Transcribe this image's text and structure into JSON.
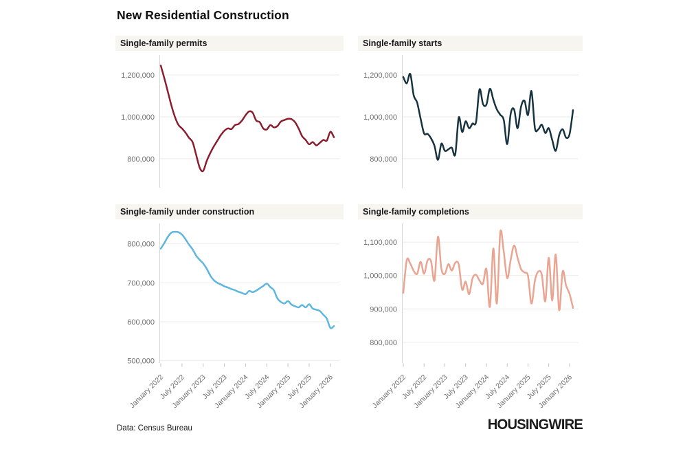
{
  "page": {
    "title": "New Residential Construction",
    "source_note": "Data: Census Bureau",
    "brand": "HOUSINGWIRE"
  },
  "colors": {
    "permits_line": "#8b1e2e",
    "starts_line": "#17333f",
    "under_construction_line": "#5eb6de",
    "completions_line": "#e9a592",
    "panel_title_bg": "#f7f5f0",
    "gridline": "#edebe6",
    "axis_line": "#d8d6d1",
    "tick_mark": "#c4c2bd",
    "axis_label": "#6e6e6e"
  },
  "axis": {
    "x_tick_labels": [
      "January 2022",
      "July 2022",
      "January 2023",
      "July 2023",
      "January 2024",
      "July 2024",
      "January 2025",
      "July 2025",
      "January 2026"
    ],
    "x_tick_months": [
      0,
      6,
      12,
      18,
      24,
      30,
      36,
      42,
      48
    ],
    "x_months": [
      "2022-01",
      "2022-02",
      "2022-03",
      "2022-04",
      "2022-05",
      "2022-06",
      "2022-07",
      "2022-08",
      "2022-09",
      "2022-10",
      "2022-11",
      "2022-12",
      "2023-01",
      "2023-02",
      "2023-03",
      "2023-04",
      "2023-05",
      "2023-06",
      "2023-07",
      "2023-08",
      "2023-09",
      "2023-10",
      "2023-11",
      "2023-12",
      "2024-01",
      "2024-02",
      "2024-03",
      "2024-04",
      "2024-05",
      "2024-06",
      "2024-07",
      "2024-08",
      "2024-09",
      "2024-10",
      "2024-11",
      "2024-12",
      "2025-01",
      "2025-02",
      "2025-03",
      "2025-04",
      "2025-05",
      "2025-06",
      "2025-07",
      "2025-08",
      "2025-09",
      "2025-10",
      "2025-11",
      "2025-12",
      "2026-01",
      "2026-02"
    ]
  },
  "chart_data": [
    {
      "type": "line",
      "title": "Single-family permits",
      "color": "#8b1e2e",
      "yticks": [
        800000,
        1000000,
        1200000
      ],
      "ylim": [
        662000,
        1315000
      ],
      "show_x_labels": false,
      "values": [
        1245000,
        1185000,
        1120000,
        1055000,
        1000000,
        962000,
        945000,
        925000,
        900000,
        880000,
        820000,
        758000,
        742000,
        790000,
        827000,
        859000,
        886000,
        913000,
        934000,
        945000,
        942000,
        961000,
        966000,
        983000,
        1008000,
        1026000,
        1020000,
        983000,
        975000,
        945000,
        940000,
        961000,
        950000,
        956000,
        978000,
        985000,
        991000,
        989000,
        975000,
        945000,
        908000,
        890000,
        869000,
        880000,
        864000,
        876000,
        890000,
        887000,
        929000,
        903000
      ]
    },
    {
      "type": "line",
      "title": "Single-family starts",
      "color": "#17333f",
      "yticks": [
        800000,
        1000000,
        1200000
      ],
      "ylim": [
        662000,
        1315000
      ],
      "show_x_labels": false,
      "values": [
        1190000,
        1160000,
        1205000,
        1103000,
        1068000,
        991000,
        921000,
        919000,
        898000,
        862000,
        795000,
        872000,
        838000,
        845000,
        853000,
        821000,
        997000,
        928000,
        979000,
        946000,
        968000,
        976000,
        1131000,
        1062000,
        1059000,
        1134000,
        1082000,
        1036000,
        1010000,
        985000,
        870000,
        1015000,
        1035000,
        946000,
        1049000,
        1077000,
        1009000,
        1123000,
        946000,
        941000,
        963000,
        923000,
        946000,
        889000,
        838000,
        912000,
        941000,
        901000,
        918000,
        1032000
      ]
    },
    {
      "type": "line",
      "title": "Single-family under construction",
      "color": "#5eb6de",
      "yticks": [
        500000,
        600000,
        700000,
        800000
      ],
      "ylim": [
        494000,
        863000
      ],
      "show_x_labels": true,
      "values": [
        788000,
        802000,
        818000,
        829000,
        831000,
        830000,
        824000,
        812000,
        798000,
        786000,
        770000,
        759000,
        750000,
        736000,
        719000,
        707000,
        700000,
        696000,
        691000,
        688000,
        684000,
        681000,
        677000,
        674000,
        671000,
        679000,
        676000,
        680000,
        686000,
        692000,
        698000,
        689000,
        681000,
        660000,
        651000,
        647000,
        653000,
        644000,
        640000,
        637000,
        643000,
        637000,
        645000,
        634000,
        631000,
        628000,
        618000,
        608000,
        584000,
        589000
      ]
    },
    {
      "type": "line",
      "title": "Single-family completions",
      "color": "#e9a592",
      "yticks": [
        800000,
        900000,
        1000000,
        1100000
      ],
      "ylim": [
        738000,
        1168000
      ],
      "show_x_labels": true,
      "values": [
        948000,
        1046000,
        1036000,
        1014000,
        1005000,
        1041000,
        1005000,
        1045000,
        1043000,
        985000,
        1116000,
        1020000,
        1005000,
        1034000,
        1015000,
        1038000,
        1033000,
        958000,
        982000,
        944000,
        992000,
        1002000,
        985000,
        975000,
        1019000,
        906000,
        1081000,
        916000,
        1129000,
        1071000,
        992000,
        1047000,
        1090000,
        1053000,
        1019000,
        1009000,
        999000,
        916000,
        985000,
        1012000,
        1002000,
        923000,
        1053000,
        925000,
        1063000,
        896000,
        1012000,
        970000,
        945000,
        903000
      ]
    }
  ]
}
